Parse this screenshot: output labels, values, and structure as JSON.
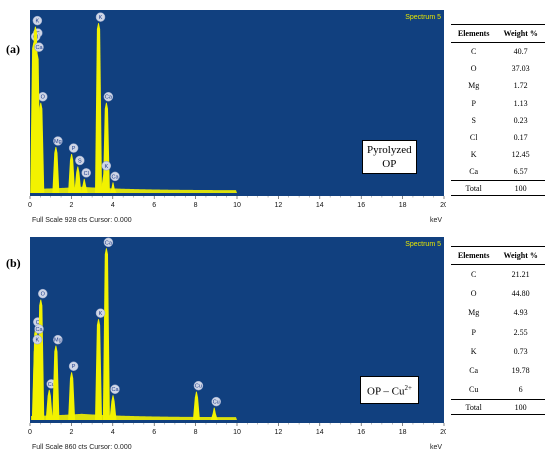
{
  "chart_data": [
    {
      "type": "bar",
      "panel": "(a)",
      "spectrum_label": "Spectrum 5",
      "sample_label": [
        "Pyrolyzed",
        "OP"
      ],
      "xlabel": "keV",
      "xlim": [
        0,
        20
      ],
      "x_ticks": [
        "0",
        "2",
        "4",
        "6",
        "8",
        "10",
        "12",
        "14",
        "16",
        "18",
        "20"
      ],
      "footer": "Full Scale 928 cts Cursor: 0.000",
      "peaks": [
        {
          "label": "C",
          "energy": 0.28,
          "rel_height": 0.87
        },
        {
          "label": "O",
          "energy": 0.52,
          "rel_height": 0.51
        },
        {
          "label": "Cl",
          "energy": 0.18,
          "rel_height": 0.85
        },
        {
          "label": "K",
          "energy": 0.26,
          "rel_height": 0.94
        },
        {
          "label": "Ca",
          "energy": 0.34,
          "rel_height": 0.79
        },
        {
          "label": "Mg",
          "energy": 1.25,
          "rel_height": 0.26
        },
        {
          "label": "P",
          "energy": 2.01,
          "rel_height": 0.22
        },
        {
          "label": "S",
          "energy": 2.31,
          "rel_height": 0.15
        },
        {
          "label": "Cl",
          "energy": 2.62,
          "rel_height": 0.08
        },
        {
          "label": "K",
          "energy": 3.31,
          "rel_height": 0.96
        },
        {
          "label": "Ca",
          "energy": 3.69,
          "rel_height": 0.51
        },
        {
          "label": "K",
          "energy": 3.59,
          "rel_height": 0.12
        },
        {
          "label": "Ca",
          "energy": 4.01,
          "rel_height": 0.06
        }
      ],
      "table": {
        "headers": [
          "Elements",
          "Weight %"
        ],
        "rows": [
          [
            "C",
            "40.7"
          ],
          [
            "O",
            "37.03"
          ],
          [
            "Mg",
            "1.72"
          ],
          [
            "P",
            "1.13"
          ],
          [
            "S",
            "0.23"
          ],
          [
            "Cl",
            "0.17"
          ],
          [
            "K",
            "12.45"
          ],
          [
            "Ca",
            "6.57"
          ]
        ],
        "total": [
          "Total",
          "100"
        ]
      }
    },
    {
      "type": "bar",
      "panel": "(b)",
      "spectrum_label": "Spectrum 5",
      "sample_label": [
        "OP – Cu",
        "2+"
      ],
      "xlabel": "keV",
      "xlim": [
        0,
        20
      ],
      "x_ticks": [
        "0",
        "2",
        "4",
        "6",
        "8",
        "10",
        "12",
        "14",
        "16",
        "18",
        "20"
      ],
      "footer": "Full Scale 860 cts Cursor: 0.000",
      "peaks": [
        {
          "label": "C",
          "energy": 0.28,
          "rel_height": 0.52
        },
        {
          "label": "O",
          "energy": 0.52,
          "rel_height": 0.68
        },
        {
          "label": "Cu",
          "energy": 0.93,
          "rel_height": 0.17
        },
        {
          "label": "Ca",
          "energy": 0.34,
          "rel_height": 0.48
        },
        {
          "label": "K",
          "energy": 0.26,
          "rel_height": 0.42
        },
        {
          "label": "Mg",
          "energy": 1.25,
          "rel_height": 0.42
        },
        {
          "label": "P",
          "energy": 2.01,
          "rel_height": 0.27
        },
        {
          "label": "Ca",
          "energy": 3.69,
          "rel_height": 0.97
        },
        {
          "label": "K",
          "energy": 3.31,
          "rel_height": 0.57
        },
        {
          "label": "Ca",
          "energy": 4.01,
          "rel_height": 0.14
        },
        {
          "label": "Cu",
          "energy": 8.04,
          "rel_height": 0.16
        },
        {
          "label": "Cu",
          "energy": 8.9,
          "rel_height": 0.07
        }
      ],
      "table": {
        "headers": [
          "Elements",
          "Weight %"
        ],
        "rows": [
          [
            "C",
            "21.21"
          ],
          [
            "O",
            "44.80"
          ],
          [
            "Mg",
            "4.93"
          ],
          [
            "P",
            "2.55"
          ],
          [
            "K",
            "0.73"
          ],
          [
            "Ca",
            "19.78"
          ],
          [
            "Cu",
            "6"
          ]
        ],
        "total": [
          "Total",
          "100"
        ]
      }
    }
  ],
  "colors": {
    "plot_background": "#11407f",
    "spectrum_fill": "#f2f200",
    "peak_marker": "#cfd6e6",
    "spectrum_label": "#e8e800"
  }
}
